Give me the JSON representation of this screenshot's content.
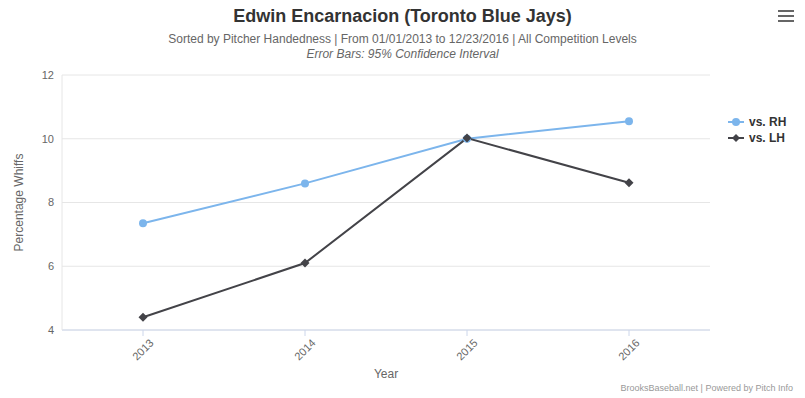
{
  "chart_data": {
    "type": "line",
    "title": "Edwin Encarnacion (Toronto Blue Jays)",
    "subtitle": "Sorted by Pitcher Handedness | From 01/01/2013 to 12/23/2016 | All Competition Levels",
    "annotations": [
      "Error Bars: 95% Confidence Interval",
      "BrooksBaseball.net | Powered by Pitch Info"
    ],
    "x_label": "Year",
    "y_label": "Percentage Whiffs",
    "categories": [
      "2013",
      "2014",
      "2015",
      "2016"
    ],
    "series": [
      {
        "name": "vs. RH",
        "color": "#7cb5ec",
        "marker": "circle",
        "values": [
          7.35,
          8.6,
          10.0,
          10.55
        ]
      },
      {
        "name": "vs. LH",
        "color": "#434348",
        "marker": "diamond",
        "values": [
          4.4,
          6.1,
          10.02,
          8.62
        ]
      }
    ],
    "ylim": [
      4,
      12
    ],
    "yticks": [
      4,
      6,
      8,
      10,
      12
    ],
    "grid": true,
    "legend": "right"
  }
}
